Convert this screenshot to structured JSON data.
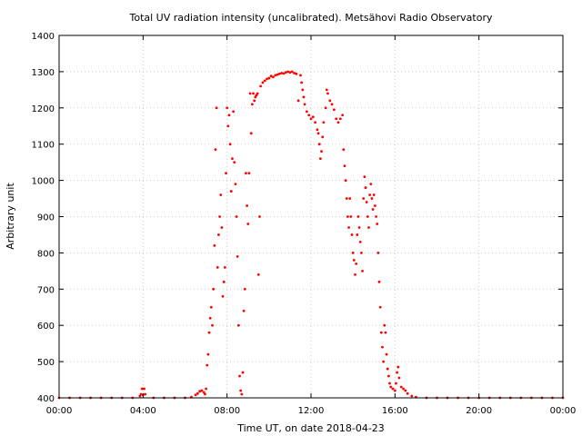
{
  "chart_data": {
    "type": "scatter",
    "title": "Total UV radiation intensity (uncalibrated). Metsähovi Radio Observatory",
    "xlabel": "Time UT, on date 2018-04-23",
    "ylabel": "Arbitrary unit",
    "xlim": [
      0,
      24
    ],
    "ylim": [
      400,
      1400
    ],
    "x_ticks": [
      0,
      4,
      8,
      12,
      16,
      20,
      24
    ],
    "x_tick_labels": [
      "00:00",
      "04:00",
      "08:00",
      "12:00",
      "16:00",
      "20:00",
      "00:00"
    ],
    "y_ticks": [
      400,
      500,
      600,
      700,
      800,
      900,
      1000,
      1100,
      1200,
      1300,
      1400
    ],
    "y_tick_labels": [
      "400",
      "500",
      "600",
      "700",
      "800",
      "900",
      "1000",
      "1100",
      "1200",
      "1300",
      "1400"
    ],
    "grid": true,
    "marker_color": "#ff0000",
    "points": [
      [
        0.0,
        400
      ],
      [
        0.5,
        400
      ],
      [
        1.0,
        400
      ],
      [
        1.5,
        400
      ],
      [
        2.0,
        400
      ],
      [
        2.5,
        400
      ],
      [
        3.0,
        400
      ],
      [
        3.5,
        400
      ],
      [
        3.85,
        405
      ],
      [
        3.9,
        410
      ],
      [
        3.95,
        425
      ],
      [
        4.0,
        408
      ],
      [
        4.05,
        425
      ],
      [
        4.1,
        410
      ],
      [
        4.5,
        400
      ],
      [
        5.0,
        400
      ],
      [
        5.5,
        400
      ],
      [
        6.0,
        400
      ],
      [
        6.3,
        402
      ],
      [
        6.5,
        408
      ],
      [
        6.6,
        412
      ],
      [
        6.7,
        418
      ],
      [
        6.8,
        420
      ],
      [
        6.9,
        415
      ],
      [
        6.95,
        410
      ],
      [
        7.0,
        425
      ],
      [
        7.05,
        490
      ],
      [
        7.1,
        520
      ],
      [
        7.15,
        580
      ],
      [
        7.2,
        620
      ],
      [
        7.25,
        650
      ],
      [
        7.3,
        600
      ],
      [
        7.35,
        700
      ],
      [
        7.4,
        820
      ],
      [
        7.45,
        1085
      ],
      [
        7.5,
        1200
      ],
      [
        7.55,
        760
      ],
      [
        7.6,
        850
      ],
      [
        7.65,
        900
      ],
      [
        7.7,
        960
      ],
      [
        7.75,
        870
      ],
      [
        7.8,
        680
      ],
      [
        7.85,
        720
      ],
      [
        7.9,
        760
      ],
      [
        7.95,
        1020
      ],
      [
        8.0,
        1200
      ],
      [
        8.05,
        1150
      ],
      [
        8.1,
        1180
      ],
      [
        8.15,
        1100
      ],
      [
        8.2,
        970
      ],
      [
        8.25,
        1060
      ],
      [
        8.3,
        1190
      ],
      [
        8.35,
        1050
      ],
      [
        8.4,
        990
      ],
      [
        8.45,
        900
      ],
      [
        8.5,
        790
      ],
      [
        8.55,
        600
      ],
      [
        8.6,
        460
      ],
      [
        8.65,
        420
      ],
      [
        8.7,
        410
      ],
      [
        8.75,
        470
      ],
      [
        8.8,
        640
      ],
      [
        8.85,
        700
      ],
      [
        8.9,
        1020
      ],
      [
        8.95,
        930
      ],
      [
        9.0,
        880
      ],
      [
        9.05,
        1020
      ],
      [
        9.1,
        1240
      ],
      [
        9.15,
        1130
      ],
      [
        9.2,
        1210
      ],
      [
        9.25,
        1240
      ],
      [
        9.3,
        1220
      ],
      [
        9.35,
        1230
      ],
      [
        9.4,
        1235
      ],
      [
        9.45,
        1240
      ],
      [
        9.5,
        740
      ],
      [
        9.55,
        900
      ],
      [
        9.6,
        1260
      ],
      [
        9.7,
        1270
      ],
      [
        9.8,
        1275
      ],
      [
        9.9,
        1280
      ],
      [
        10.0,
        1282
      ],
      [
        10.1,
        1288
      ],
      [
        10.2,
        1285
      ],
      [
        10.3,
        1290
      ],
      [
        10.4,
        1292
      ],
      [
        10.5,
        1294
      ],
      [
        10.6,
        1296
      ],
      [
        10.7,
        1295
      ],
      [
        10.8,
        1298
      ],
      [
        10.9,
        1300
      ],
      [
        11.0,
        1298
      ],
      [
        11.1,
        1300
      ],
      [
        11.2,
        1296
      ],
      [
        11.3,
        1294
      ],
      [
        11.4,
        1220
      ],
      [
        11.5,
        1290
      ],
      [
        11.55,
        1270
      ],
      [
        11.6,
        1250
      ],
      [
        11.65,
        1230
      ],
      [
        11.7,
        1210
      ],
      [
        11.8,
        1190
      ],
      [
        11.9,
        1180
      ],
      [
        12.0,
        1170
      ],
      [
        12.1,
        1175
      ],
      [
        12.2,
        1160
      ],
      [
        12.3,
        1140
      ],
      [
        12.35,
        1130
      ],
      [
        12.4,
        1100
      ],
      [
        12.45,
        1060
      ],
      [
        12.5,
        1080
      ],
      [
        12.55,
        1120
      ],
      [
        12.6,
        1160
      ],
      [
        12.7,
        1200
      ],
      [
        12.75,
        1250
      ],
      [
        12.8,
        1240
      ],
      [
        12.9,
        1220
      ],
      [
        13.0,
        1210
      ],
      [
        13.1,
        1195
      ],
      [
        13.2,
        1170
      ],
      [
        13.3,
        1160
      ],
      [
        13.4,
        1170
      ],
      [
        13.5,
        1180
      ],
      [
        13.55,
        1085
      ],
      [
        13.6,
        1040
      ],
      [
        13.65,
        1000
      ],
      [
        13.7,
        950
      ],
      [
        13.75,
        900
      ],
      [
        13.8,
        870
      ],
      [
        13.85,
        950
      ],
      [
        13.9,
        900
      ],
      [
        13.95,
        850
      ],
      [
        14.0,
        800
      ],
      [
        14.05,
        780
      ],
      [
        14.1,
        740
      ],
      [
        14.15,
        770
      ],
      [
        14.2,
        850
      ],
      [
        14.25,
        900
      ],
      [
        14.3,
        870
      ],
      [
        14.35,
        830
      ],
      [
        14.4,
        800
      ],
      [
        14.45,
        750
      ],
      [
        14.5,
        950
      ],
      [
        14.55,
        1010
      ],
      [
        14.6,
        980
      ],
      [
        14.65,
        940
      ],
      [
        14.7,
        900
      ],
      [
        14.75,
        870
      ],
      [
        14.8,
        960
      ],
      [
        14.85,
        990
      ],
      [
        14.9,
        950
      ],
      [
        14.95,
        920
      ],
      [
        15.0,
        960
      ],
      [
        15.05,
        930
      ],
      [
        15.1,
        900
      ],
      [
        15.15,
        880
      ],
      [
        15.2,
        800
      ],
      [
        15.25,
        720
      ],
      [
        15.3,
        650
      ],
      [
        15.35,
        580
      ],
      [
        15.4,
        540
      ],
      [
        15.45,
        500
      ],
      [
        15.5,
        600
      ],
      [
        15.55,
        580
      ],
      [
        15.6,
        520
      ],
      [
        15.65,
        480
      ],
      [
        15.7,
        460
      ],
      [
        15.75,
        440
      ],
      [
        15.8,
        430
      ],
      [
        15.9,
        425
      ],
      [
        16.0,
        420
      ],
      [
        16.05,
        440
      ],
      [
        16.1,
        470
      ],
      [
        16.15,
        485
      ],
      [
        16.2,
        455
      ],
      [
        16.3,
        430
      ],
      [
        16.4,
        425
      ],
      [
        16.5,
        420
      ],
      [
        16.6,
        412
      ],
      [
        16.8,
        405
      ],
      [
        17.0,
        402
      ],
      [
        17.5,
        400
      ],
      [
        18.0,
        400
      ],
      [
        18.5,
        400
      ],
      [
        19.0,
        400
      ],
      [
        19.5,
        400
      ],
      [
        20.0,
        400
      ],
      [
        20.5,
        400
      ],
      [
        21.0,
        400
      ],
      [
        21.5,
        400
      ],
      [
        22.0,
        400
      ],
      [
        22.5,
        400
      ],
      [
        23.0,
        400
      ],
      [
        23.5,
        400
      ],
      [
        24.0,
        400
      ]
    ]
  }
}
